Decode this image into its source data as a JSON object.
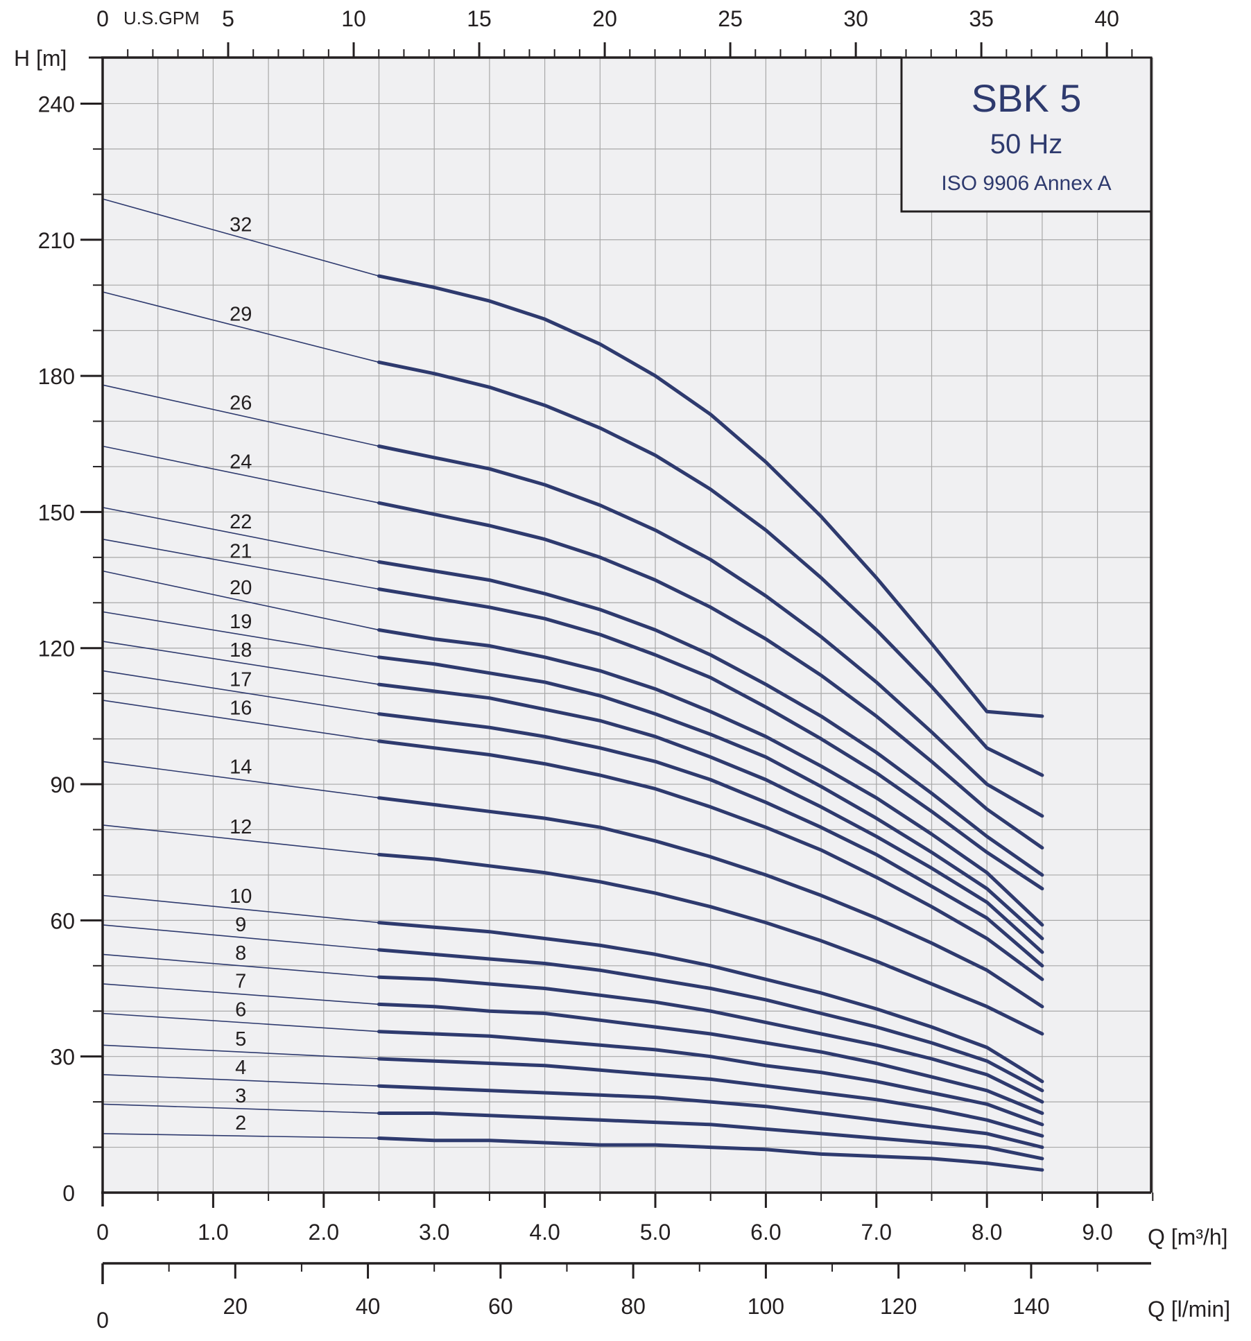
{
  "chart_data": {
    "type": "line",
    "title": "SBK 5",
    "subtitle": "50 Hz",
    "note": "ISO 9906 Annex A",
    "ylabel": "H [m]",
    "xlabel": "Q [m³/h]",
    "x2label": "Q [l/min]",
    "x3label": "U.S.GPM",
    "xlim": [
      0,
      9.5
    ],
    "ylim": [
      0,
      250
    ],
    "grid": true,
    "legend": "top-right",
    "colors": {
      "curve": "#2e3a6e",
      "grid": "#a8a8a8",
      "axis": "#231f20",
      "background": "#f0f0f2"
    },
    "x_ticks": [
      "0",
      "1.0",
      "2.0",
      "3.0",
      "4.0",
      "5.0",
      "6.0",
      "7.0",
      "8.0",
      "9.0"
    ],
    "y_ticks": [
      "0",
      "30",
      "60",
      "90",
      "120",
      "150",
      "180",
      "210",
      "240"
    ],
    "lmin_ticks": [
      "0",
      "20",
      "40",
      "60",
      "80",
      "100",
      "120",
      "140"
    ],
    "gpm_ticks": [
      "0",
      "5",
      "10",
      "15",
      "20",
      "25",
      "30",
      "35",
      "40"
    ],
    "curve_x": [
      2.5,
      3.0,
      3.5,
      4.0,
      4.5,
      5.0,
      5.5,
      6.0,
      6.5,
      7.0,
      7.5,
      8.0,
      8.5
    ],
    "series": [
      {
        "name": "32",
        "shutoff": 219,
        "values": [
          202,
          199.5,
          196.5,
          192.5,
          187,
          180,
          171.5,
          161,
          149,
          135.5,
          121,
          106,
          105
        ]
      },
      {
        "name": "29",
        "shutoff": 198.5,
        "values": [
          183,
          180.5,
          177.5,
          173.5,
          168.5,
          162.5,
          155,
          146,
          135.5,
          124,
          111.5,
          98,
          92
        ]
      },
      {
        "name": "26",
        "shutoff": 178,
        "values": [
          164.5,
          162,
          159.5,
          156,
          151.5,
          146,
          139.5,
          131.5,
          122.5,
          112.5,
          101.5,
          90,
          83
        ]
      },
      {
        "name": "24",
        "shutoff": 164.5,
        "values": [
          152,
          149.5,
          147,
          144,
          140,
          135,
          129,
          122,
          114,
          105,
          95,
          84.5,
          76
        ]
      },
      {
        "name": "22",
        "shutoff": 151,
        "values": [
          139,
          137,
          135,
          132,
          128.5,
          124,
          118.5,
          112,
          105,
          97,
          88,
          78.5,
          70
        ]
      },
      {
        "name": "21",
        "shutoff": 144,
        "values": [
          133,
          131,
          129,
          126.5,
          123,
          118.5,
          113.5,
          107,
          100,
          92.5,
          84,
          75,
          67
        ]
      },
      {
        "name": "20",
        "shutoff": 137,
        "values": [
          124,
          122,
          120.5,
          118,
          115,
          111,
          106,
          100.5,
          94,
          87,
          79,
          70.5,
          59
        ]
      },
      {
        "name": "19",
        "shutoff": 128,
        "values": [
          118,
          116.5,
          114.5,
          112.5,
          109.5,
          105.5,
          101,
          96,
          89.5,
          82.5,
          75,
          67,
          56
        ]
      },
      {
        "name": "18",
        "shutoff": 121.5,
        "values": [
          112,
          110.5,
          109,
          106.5,
          104,
          100.5,
          96,
          91,
          85,
          78.5,
          71.5,
          64,
          53
        ]
      },
      {
        "name": "17",
        "shutoff": 115,
        "values": [
          105.5,
          104,
          102.5,
          100.5,
          98,
          95,
          91,
          86,
          80.5,
          74.5,
          67.5,
          60.5,
          50
        ]
      },
      {
        "name": "16",
        "shutoff": 108.5,
        "values": [
          99.5,
          98,
          96.5,
          94.5,
          92,
          89,
          85,
          80.5,
          75.5,
          69.5,
          63,
          56,
          47
        ]
      },
      {
        "name": "14",
        "shutoff": 95,
        "values": [
          87,
          85.5,
          84,
          82.5,
          80.5,
          77.5,
          74,
          70,
          65.5,
          60.5,
          55,
          49,
          41
        ]
      },
      {
        "name": "12",
        "shutoff": 81,
        "values": [
          74.5,
          73.5,
          72,
          70.5,
          68.5,
          66,
          63,
          59.5,
          55.5,
          51,
          46,
          41,
          35
        ]
      },
      {
        "name": "10",
        "shutoff": 65.5,
        "values": [
          59.5,
          58.5,
          57.5,
          56,
          54.5,
          52.5,
          50,
          47,
          44,
          40.5,
          36.5,
          32,
          24.5
        ]
      },
      {
        "name": "9",
        "shutoff": 59,
        "values": [
          53.5,
          52.5,
          51.5,
          50.5,
          49,
          47,
          45,
          42.5,
          39.5,
          36.5,
          33,
          29,
          22.5
        ]
      },
      {
        "name": "8",
        "shutoff": 52.5,
        "values": [
          47.5,
          47,
          46,
          45,
          43.5,
          42,
          40,
          37.5,
          35,
          32.5,
          29.5,
          26,
          20
        ]
      },
      {
        "name": "7",
        "shutoff": 46,
        "values": [
          41.5,
          41,
          40,
          39.5,
          38,
          36.5,
          35,
          33,
          31,
          28.5,
          25.5,
          22.5,
          17.5
        ]
      },
      {
        "name": "6",
        "shutoff": 39.5,
        "values": [
          35.5,
          35,
          34.5,
          33.5,
          32.5,
          31.5,
          30,
          28,
          26.5,
          24.5,
          22,
          19.5,
          15
        ]
      },
      {
        "name": "5",
        "shutoff": 32.5,
        "values": [
          29.5,
          29,
          28.5,
          28,
          27,
          26,
          25,
          23.5,
          22,
          20.5,
          18.5,
          16,
          12.5
        ]
      },
      {
        "name": "4",
        "shutoff": 26,
        "values": [
          23.5,
          23,
          22.5,
          22,
          21.5,
          21,
          20,
          19,
          17.5,
          16,
          14.5,
          13,
          10
        ]
      },
      {
        "name": "3",
        "shutoff": 19.5,
        "values": [
          17.5,
          17.5,
          17,
          16.5,
          16,
          15.5,
          15,
          14,
          13,
          12,
          11,
          10,
          7.5
        ]
      },
      {
        "name": "2",
        "shutoff": 13,
        "values": [
          12,
          11.5,
          11.5,
          11,
          10.5,
          10.5,
          10,
          9.5,
          8.5,
          8,
          7.5,
          6.5,
          5
        ]
      }
    ]
  }
}
